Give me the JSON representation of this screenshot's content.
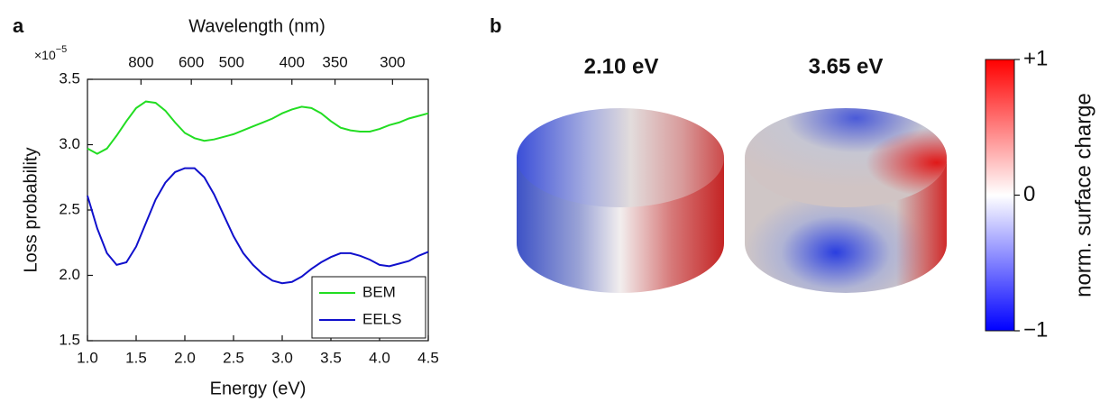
{
  "chart_data": [
    {
      "type": "line",
      "panel_label": "a",
      "xlabel": "Energy (eV)",
      "ylabel": "Loss probability",
      "x2label": "Wavelength (nm)",
      "y_scale_label": {
        "base": "×10",
        "exponent": "−5"
      },
      "x": [
        1.0,
        1.1,
        1.2,
        1.3,
        1.4,
        1.5,
        1.6,
        1.7,
        1.8,
        1.9,
        2.0,
        2.1,
        2.2,
        2.3,
        2.4,
        2.5,
        2.6,
        2.7,
        2.8,
        2.9,
        3.0,
        3.1,
        3.2,
        3.3,
        3.4,
        3.5,
        3.6,
        3.7,
        3.8,
        3.9,
        4.0,
        4.1,
        4.2,
        4.3,
        4.4,
        4.5
      ],
      "series": [
        {
          "name": "BEM",
          "color": "#22dd22",
          "values": [
            2.97,
            2.93,
            2.97,
            3.07,
            3.18,
            3.28,
            3.33,
            3.32,
            3.26,
            3.17,
            3.09,
            3.05,
            3.03,
            3.04,
            3.06,
            3.08,
            3.11,
            3.14,
            3.17,
            3.2,
            3.24,
            3.27,
            3.29,
            3.28,
            3.24,
            3.18,
            3.13,
            3.11,
            3.1,
            3.1,
            3.12,
            3.15,
            3.17,
            3.2,
            3.22,
            3.24
          ]
        },
        {
          "name": "EELS",
          "color": "#1010cc",
          "values": [
            2.61,
            2.36,
            2.17,
            2.08,
            2.1,
            2.22,
            2.4,
            2.58,
            2.71,
            2.79,
            2.82,
            2.82,
            2.75,
            2.62,
            2.46,
            2.3,
            2.17,
            2.08,
            2.01,
            1.96,
            1.94,
            1.95,
            1.99,
            2.05,
            2.1,
            2.14,
            2.17,
            2.17,
            2.15,
            2.12,
            2.08,
            2.07,
            2.09,
            2.11,
            2.15,
            2.18
          ]
        }
      ],
      "xlim": [
        1.0,
        4.5
      ],
      "xticks": [
        {
          "value": 1,
          "label": "1.0"
        },
        1.5,
        {
          "value": 2,
          "label": "2.0"
        },
        2.5,
        {
          "value": 3,
          "label": "3.0"
        },
        3.5,
        {
          "value": 4,
          "label": "4.0"
        },
        4.5
      ],
      "ylim": [
        1.5,
        3.5
      ],
      "yticks": [
        1.5,
        {
          "value": 2,
          "label": "2.0"
        },
        2.5,
        {
          "value": 3,
          "label": "3.0"
        },
        3.5
      ],
      "x2scale": "reciprocal",
      "x2lim": [
        1239.84,
        275.52
      ],
      "x2ticks": [
        800,
        600,
        500,
        400,
        350,
        300
      ],
      "legend": "lower right",
      "grid": false
    },
    {
      "type": "colormap",
      "panel_label": "b",
      "titles": [
        "2.10 eV",
        "3.65 eV"
      ],
      "colorbar_label": "norm. surface charge",
      "clim": [
        -1,
        1
      ],
      "cticks": [
        {
          "value": 1,
          "label": "+1"
        },
        0,
        {
          "value": -1,
          "label": "−1"
        }
      ],
      "colormap": [
        "#0000ff",
        "#ffffff",
        "#ff0000"
      ]
    }
  ]
}
